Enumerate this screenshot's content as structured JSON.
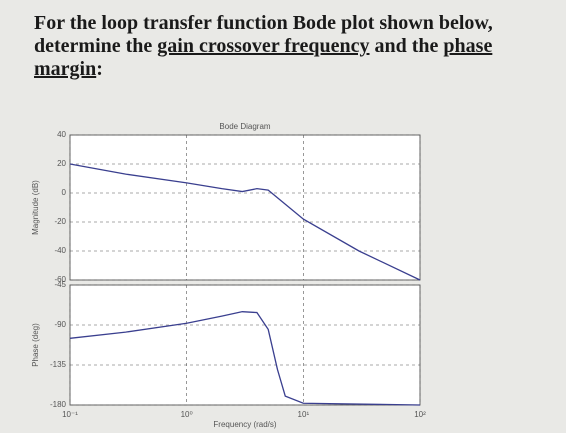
{
  "question": {
    "lines": [
      [
        {
          "text": "For the loop transfer function Bode plot shown below,",
          "underline": false
        }
      ],
      [
        {
          "text": "determine the ",
          "underline": false
        },
        {
          "text": "gain crossover frequency",
          "underline": true
        },
        {
          "text": " and the ",
          "underline": false
        },
        {
          "text": "phase",
          "underline": true
        }
      ],
      [
        {
          "text": "margin",
          "underline": true
        },
        {
          "text": ":",
          "underline": false
        }
      ]
    ]
  },
  "chart_data": [
    {
      "type": "line",
      "title": "Bode Diagram",
      "y_label": "Magnitude (dB)",
      "log_x": true,
      "grid": true,
      "x": [
        0.1,
        0.3,
        1,
        2,
        3,
        4,
        5,
        10,
        30,
        100
      ],
      "series": [
        {
          "name": "Magnitude",
          "color": "#3a3f8f",
          "values": [
            20,
            13,
            7,
            3,
            1,
            3,
            2,
            -18,
            -40,
            -60
          ]
        }
      ],
      "xlim": [
        0.1,
        100
      ],
      "ylim": [
        -60,
        40
      ],
      "yticks": [
        -60,
        -40,
        -20,
        0,
        20,
        40
      ]
    },
    {
      "type": "line",
      "x_label": "Frequency (rad/s)",
      "y_label": "Phase (deg)",
      "log_x": true,
      "grid": true,
      "x": [
        0.1,
        0.3,
        1,
        2,
        3,
        4,
        5,
        6,
        7,
        10,
        100
      ],
      "series": [
        {
          "name": "Phase",
          "color": "#3a3f8f",
          "values": [
            -105,
            -98,
            -88,
            -80,
            -75,
            -76,
            -95,
            -140,
            -170,
            -178,
            -180
          ]
        }
      ],
      "xlim": [
        0.1,
        100
      ],
      "xticks": [
        {
          "value": 0.1,
          "label": "10⁻¹"
        },
        {
          "value": 1,
          "label": "10⁰"
        },
        {
          "value": 10,
          "label": "10¹"
        },
        {
          "value": 100,
          "label": "10²"
        }
      ],
      "ylim": [
        -180,
        -45
      ],
      "yticks": [
        -180,
        -135,
        -90,
        -45
      ]
    }
  ]
}
